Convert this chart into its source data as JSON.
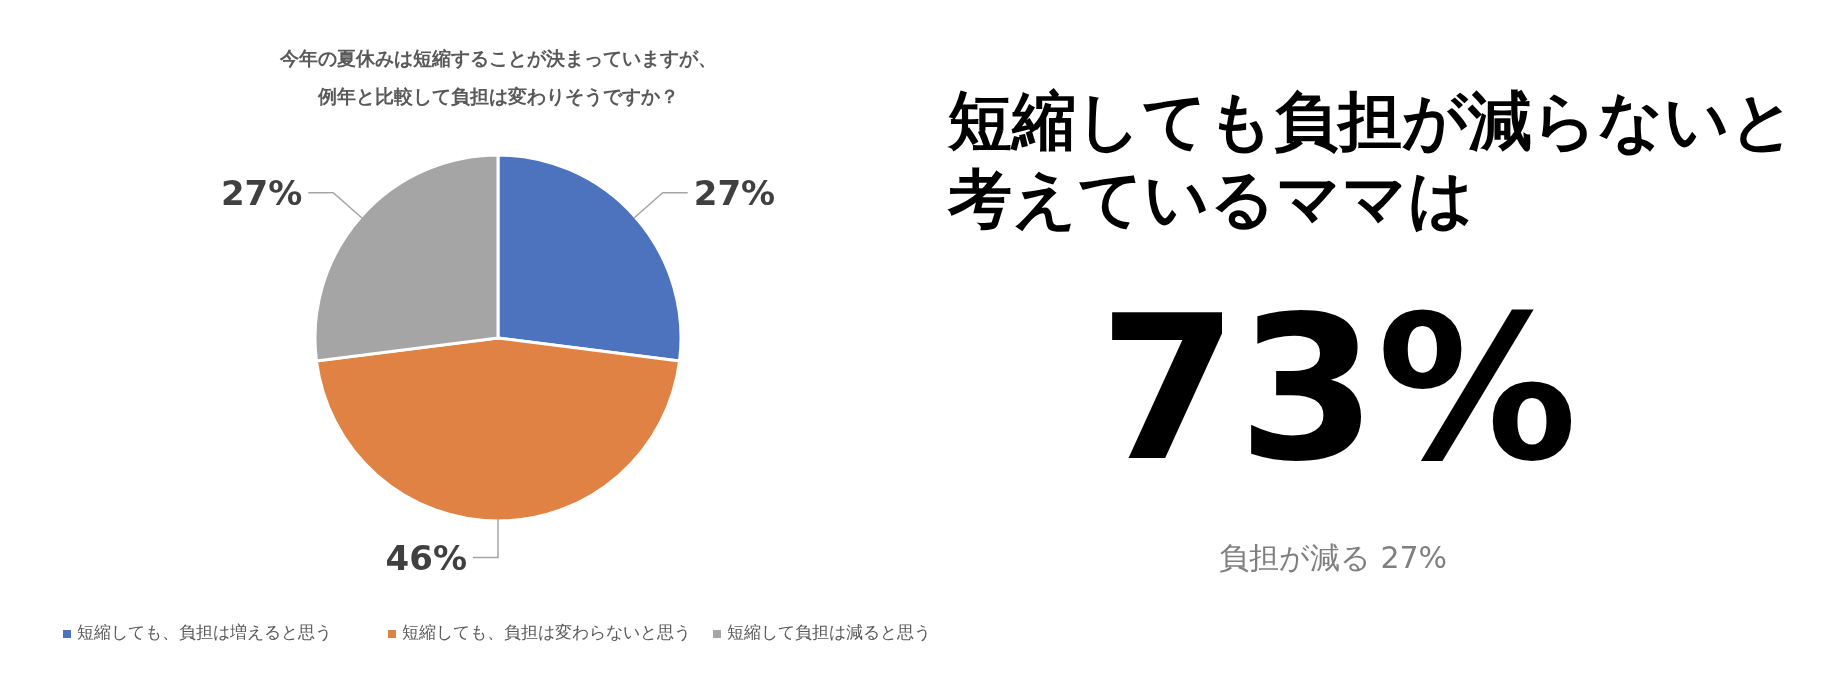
{
  "chart_data": [
    {
      "type": "pie",
      "title": "今年の夏休みは短縮することが決まっていますが、例年と比較して負担は変わりそうですか？",
      "categories": [
        "短縮しても、負担は増えると思う",
        "短縮しても、負担は変わらないと思う",
        "短縮して負担は減ると思う"
      ],
      "values": [
        27,
        46,
        27
      ],
      "colors": [
        "#4e73be",
        "#df8244",
        "#a5a5a5"
      ],
      "value_labels": [
        "27%",
        "46%",
        "27%"
      ],
      "legend": "bottom"
    },
    {
      "type": "other",
      "title": "短縮しても負担が減らないと考えているママは",
      "annotations": [
        "73%",
        "負担が減る 27%"
      ]
    }
  ]
}
